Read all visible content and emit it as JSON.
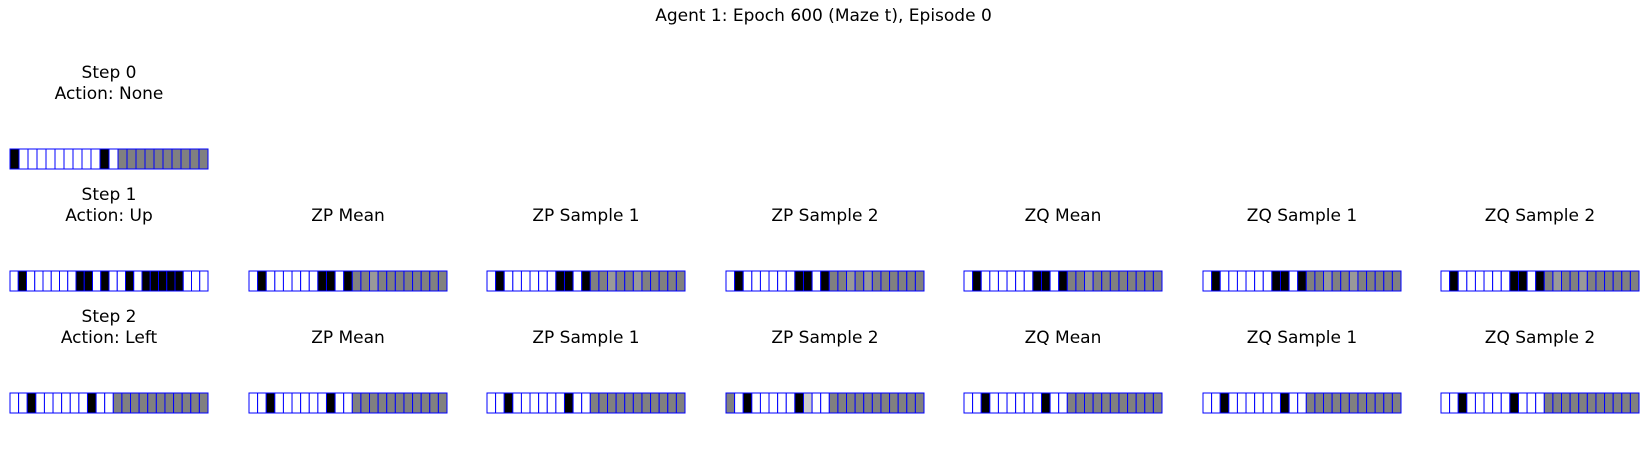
{
  "figure": {
    "title": "Agent 1: Epoch 600 (Maze t), Episode 0",
    "rows": [
      {
        "panels": [
          {
            "title": "Step 0\nAction: None",
            "cells": [
              0,
              1,
              1,
              1,
              1,
              1,
              1,
              1,
              1,
              1,
              0,
              1,
              0.5,
              0.5,
              0.5,
              0.5,
              0.5,
              0.5,
              0.5,
              0.5,
              0.5,
              0.5
            ]
          }
        ]
      },
      {
        "panels": [
          {
            "title": "Step 1\nAction: Up",
            "cells": [
              1,
              0,
              1,
              1,
              1,
              1,
              1,
              1,
              0,
              0,
              1,
              0,
              1,
              1,
              0,
              1,
              0,
              0,
              0,
              0,
              0,
              1,
              1,
              1
            ]
          },
          {
            "title": "ZP Mean",
            "cells": [
              1,
              0,
              1,
              1,
              1,
              1,
              1,
              1,
              0,
              0,
              1,
              0,
              0.5,
              0.5,
              0.6,
              0.5,
              0.5,
              0.5,
              0.5,
              0.5,
              0.5,
              0.5,
              0.5
            ]
          },
          {
            "title": "ZP Sample 1",
            "cells": [
              1,
              0,
              1,
              1,
              1,
              1,
              1,
              1,
              0,
              0,
              1,
              0,
              0.5,
              0.5,
              0.6,
              0.5,
              0.5,
              0.6,
              0.5,
              0.5,
              0.5,
              0.5,
              0.5
            ]
          },
          {
            "title": "ZP Sample 2",
            "cells": [
              1,
              0,
              1,
              1,
              1,
              1,
              1,
              1,
              0,
              0,
              1,
              0,
              0.5,
              0.5,
              0.6,
              0.5,
              0.6,
              0.5,
              0.5,
              0.5,
              0.5,
              0.5,
              0.5
            ]
          },
          {
            "title": "ZQ Mean",
            "cells": [
              1,
              0,
              1,
              1,
              1,
              1,
              1,
              1,
              0,
              0,
              1,
              0,
              0.5,
              0.5,
              0.6,
              0.5,
              0.5,
              0.5,
              0.5,
              0.5,
              0.5,
              0.5,
              0.5
            ]
          },
          {
            "title": "ZQ Sample 1",
            "cells": [
              1,
              0,
              1,
              1,
              1,
              1,
              1,
              1,
              0,
              0,
              1,
              0,
              0.5,
              0.5,
              0.6,
              0.5,
              0.5,
              0.6,
              0.5,
              0.5,
              0.5,
              0.5,
              0.5
            ]
          },
          {
            "title": "ZQ Sample 2",
            "cells": [
              1,
              0,
              1,
              1,
              1,
              1,
              1,
              1,
              0,
              0,
              1,
              0,
              0.5,
              0.6,
              0.5,
              0.5,
              0.6,
              0.5,
              0.5,
              0.5,
              0.5,
              0.5,
              0.5
            ]
          }
        ]
      },
      {
        "panels": [
          {
            "title": "Step 2\nAction: Left",
            "cells": [
              1,
              1,
              0,
              1,
              1,
              1,
              1,
              1,
              1,
              0,
              1,
              1,
              0.5,
              0.5,
              0.5,
              0.5,
              0.5,
              0.5,
              0.5,
              0.5,
              0.5,
              0.5,
              0.5
            ]
          },
          {
            "title": "ZP Mean",
            "cells": [
              1,
              1,
              0,
              1,
              1,
              1,
              1,
              1,
              1,
              0,
              1,
              1,
              0.5,
              0.5,
              0.5,
              0.5,
              0.5,
              0.5,
              0.5,
              0.5,
              0.5,
              0.5,
              0.5
            ]
          },
          {
            "title": "ZP Sample 1",
            "cells": [
              1,
              1,
              0,
              1,
              1,
              1,
              1,
              1,
              1,
              0,
              1,
              1,
              0.5,
              0.5,
              0.5,
              0.5,
              0.5,
              0.5,
              0.5,
              0.5,
              0.5,
              0.5,
              0.5
            ]
          },
          {
            "title": "ZP Sample 2",
            "cells": [
              0.5,
              1,
              0,
              1,
              1,
              1,
              1,
              1,
              0,
              0.8,
              1,
              1,
              0.5,
              0.5,
              0.5,
              0.5,
              0.5,
              0.5,
              0.5,
              0.5,
              0.5,
              0.5,
              0.5
            ]
          },
          {
            "title": "ZQ Mean",
            "cells": [
              1,
              1,
              0,
              1,
              1,
              1,
              1,
              1,
              1,
              0,
              1,
              1,
              0.5,
              0.5,
              0.5,
              0.5,
              0.5,
              0.5,
              0.5,
              0.5,
              0.5,
              0.5,
              0.5
            ]
          },
          {
            "title": "ZQ Sample 1",
            "cells": [
              1,
              1,
              0,
              1,
              1,
              1,
              1,
              1,
              1,
              0,
              1,
              1,
              0.5,
              0.5,
              0.5,
              0.5,
              0.5,
              0.5,
              0.5,
              0.5,
              0.5,
              0.5,
              0.5
            ]
          },
          {
            "title": "ZQ Sample 2",
            "cells": [
              1,
              1,
              0,
              1,
              1,
              1,
              1,
              1,
              0,
              1,
              1,
              1,
              0.5,
              0.5,
              0.5,
              0.5,
              0.5,
              0.5,
              0.5,
              0.5,
              0.5,
              0.5,
              0.5
            ]
          }
        ]
      }
    ],
    "colors": {
      "grid_line": "#0000ff",
      "black": "#000000",
      "white": "#ffffff",
      "mid_gray": "#808080"
    }
  }
}
